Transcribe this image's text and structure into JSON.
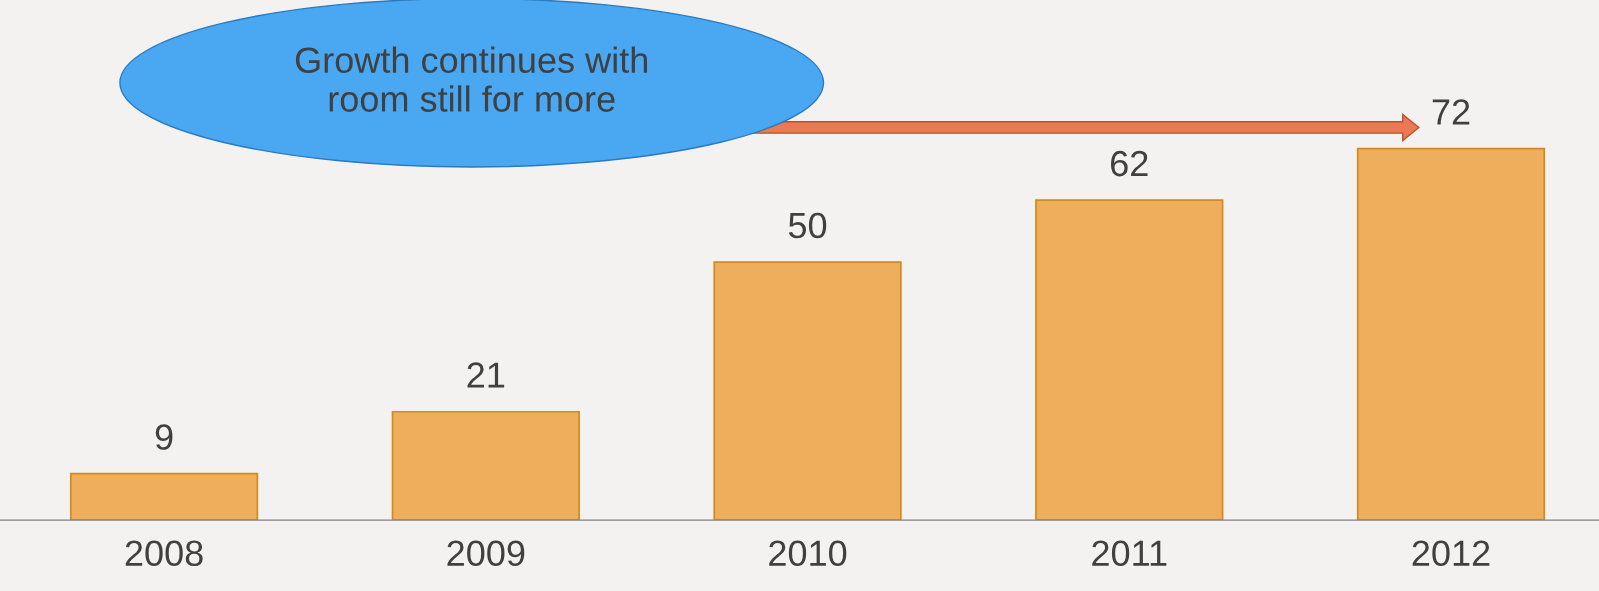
{
  "chart_data": {
    "type": "bar",
    "categories": [
      "2008",
      "2009",
      "2010",
      "2011",
      "2012"
    ],
    "values": [
      9,
      21,
      50,
      62,
      72
    ],
    "color": "#eeae5c",
    "data_labels": true,
    "grid": false,
    "legend": false,
    "tick_labels": "x",
    "annotations": [
      "Growth continues with\nroom still for more"
    ]
  }
}
